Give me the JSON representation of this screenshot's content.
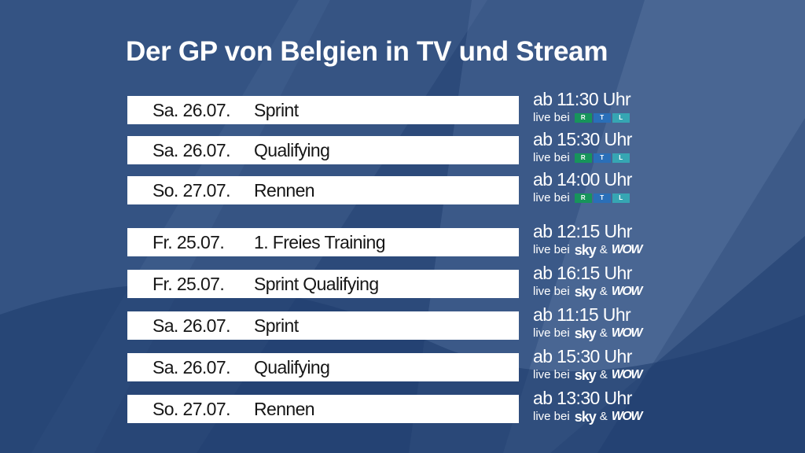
{
  "title": "Der GP von Belgien in TV und Stream",
  "live_prefix": "live bei",
  "broadcasters": {
    "rtl": {
      "letters": [
        "R",
        "T",
        "L"
      ],
      "colors": [
        "#17945b",
        "#2a6fb8",
        "#36a6b3"
      ]
    },
    "sky": {
      "name": "sky"
    },
    "wow": {
      "name": "WOW"
    },
    "and": "&"
  },
  "schedule": [
    {
      "date": "Sa. 26.07.",
      "session": "Sprint",
      "time": "ab 11:30 Uhr",
      "channel": "rtl"
    },
    {
      "date": "Sa. 26.07.",
      "session": "Qualifying",
      "time": "ab 15:30 Uhr",
      "channel": "rtl"
    },
    {
      "date": "So. 27.07.",
      "session": "Rennen",
      "time": "ab 14:00 Uhr",
      "channel": "rtl"
    },
    {
      "date": "Fr. 25.07.",
      "session": "1. Freies Training",
      "time": "ab 12:15 Uhr",
      "channel": "sky_wow"
    },
    {
      "date": "Fr. 25.07.",
      "session": "Sprint Qualifying",
      "time": "ab 16:15 Uhr",
      "channel": "sky_wow"
    },
    {
      "date": "Sa. 26.07.",
      "session": "Sprint",
      "time": "ab 11:15 Uhr",
      "channel": "sky_wow"
    },
    {
      "date": "Sa. 26.07.",
      "session": "Qualifying",
      "time": "ab 15:30 Uhr",
      "channel": "sky_wow"
    },
    {
      "date": "So. 27.07.",
      "session": "Rennen",
      "time": "ab 13:30 Uhr",
      "channel": "sky_wow"
    }
  ]
}
